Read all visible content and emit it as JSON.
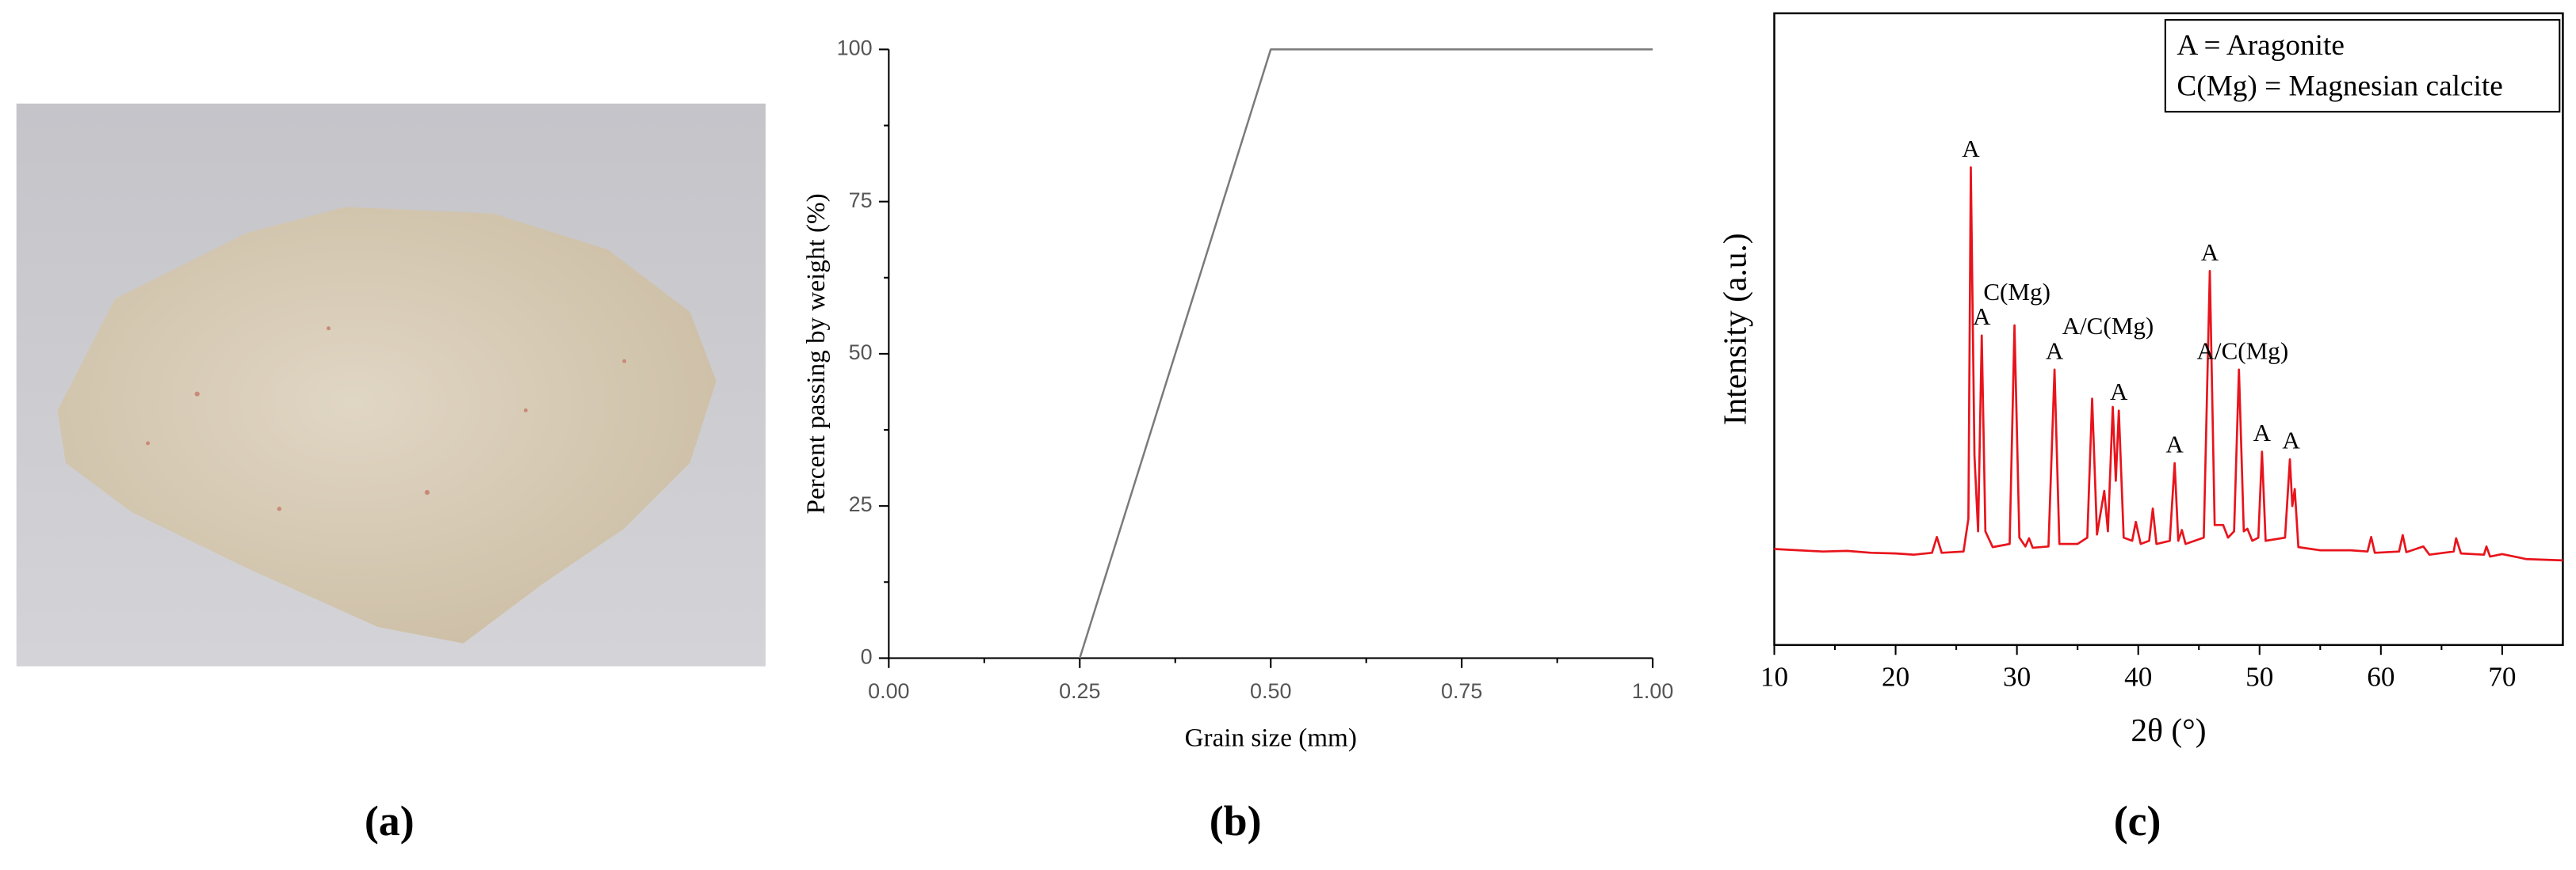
{
  "photo": {
    "caption": "(a)"
  },
  "chart_data": [
    {
      "type": "line",
      "caption": "(b)",
      "x_label": "Grain size (mm)",
      "y_label": "Percent passing by weight  (%)",
      "x": [
        0.25,
        0.5,
        1.0
      ],
      "values": [
        0,
        100,
        100
      ],
      "color": "#7a7a7a",
      "xlim": [
        0,
        1
      ],
      "ylim": [
        0,
        100
      ],
      "xticks": [
        {
          "value": 0,
          "label": "0.00"
        },
        {
          "value": 0.25,
          "label": "0.25"
        },
        {
          "value": 0.5,
          "label": "0.50"
        },
        {
          "value": 0.75,
          "label": "0.75"
        },
        {
          "value": 1,
          "label": "1.00"
        }
      ],
      "yticks": [
        0,
        25,
        50,
        75,
        100
      ],
      "frame": false,
      "minor_ticks": true
    },
    {
      "type": "line",
      "caption": "(c)",
      "x_label": "2θ (°)",
      "y_label": "Intensity (a.u.)",
      "legend_text": [
        "A = Aragonite",
        "C(Mg) = Magnesian calcite"
      ],
      "x": [
        10,
        12,
        14,
        16,
        18,
        20,
        21.5,
        23.0,
        23.4,
        23.8,
        25.6,
        26.0,
        26.2,
        26.5,
        26.8,
        27.1,
        27.4,
        28.0,
        29.4,
        29.8,
        30.2,
        30.7,
        31.0,
        31.3,
        32.6,
        33.1,
        33.5,
        35.0,
        35.8,
        36.2,
        36.6,
        37.2,
        37.5,
        37.9,
        38.15,
        38.4,
        38.8,
        39.5,
        39.8,
        40.2,
        40.9,
        41.2,
        41.5,
        42.6,
        43.0,
        43.3,
        43.6,
        43.9,
        45.4,
        45.9,
        46.3,
        47.0,
        47.4,
        47.9,
        48.3,
        48.7,
        49.0,
        49.4,
        49.9,
        50.2,
        50.5,
        52.1,
        52.5,
        52.7,
        52.9,
        53.2,
        55,
        57.5,
        58.9,
        59.2,
        59.5,
        61.5,
        61.8,
        62.1,
        63.5,
        64,
        66.0,
        66.2,
        66.6,
        68.5,
        68.7,
        69,
        70,
        72,
        75
      ],
      "values": [
        15.2,
        15.0,
        14.8,
        14.9,
        14.6,
        14.5,
        14.3,
        14.6,
        17.1,
        14.6,
        14.8,
        20,
        75.6,
        30,
        18,
        49,
        18,
        15.5,
        16,
        50.6,
        17,
        15.6,
        16.9,
        15.4,
        15.6,
        43.6,
        16,
        16,
        17,
        39,
        17.5,
        24.4,
        18,
        37.7,
        26,
        37.1,
        17,
        16.5,
        19.5,
        16,
        16.5,
        21.6,
        16,
        16.5,
        28.8,
        16.5,
        18.2,
        16,
        17,
        59.2,
        19,
        19,
        17,
        18,
        43.6,
        18,
        18.4,
        16.5,
        17,
        30.6,
        16.5,
        17,
        29.4,
        22,
        24.7,
        15.5,
        15,
        15,
        14.8,
        17.1,
        14.6,
        14.8,
        17.4,
        14.7,
        15.6,
        14.3,
        14.8,
        16.9,
        14.5,
        14.3,
        15.6,
        14,
        14.4,
        13.6,
        13.4
      ],
      "color": "#e8141c",
      "xlim": [
        10,
        75
      ],
      "ylim": [
        0,
        100
      ],
      "xticks": [
        10,
        20,
        30,
        40,
        50,
        60,
        70
      ],
      "frame": true,
      "minor_ticks": true,
      "annotations": [
        {
          "text": "A",
          "x": 26.2
        },
        {
          "text": "A",
          "x": 27.1
        },
        {
          "text": "C(Mg)",
          "x": 30.0
        },
        {
          "text": "A",
          "x": 33.1
        },
        {
          "text": "A",
          "x": 38.4
        },
        {
          "text": "A/C(Mg)",
          "x": 37.5
        },
        {
          "text": "A",
          "x": 43.0
        },
        {
          "text": "A",
          "x": 45.9
        },
        {
          "text": "A/C(Mg)",
          "x": 48.6
        },
        {
          "text": "A",
          "x": 50.2
        },
        {
          "text": "A",
          "x": 52.6
        }
      ]
    }
  ]
}
